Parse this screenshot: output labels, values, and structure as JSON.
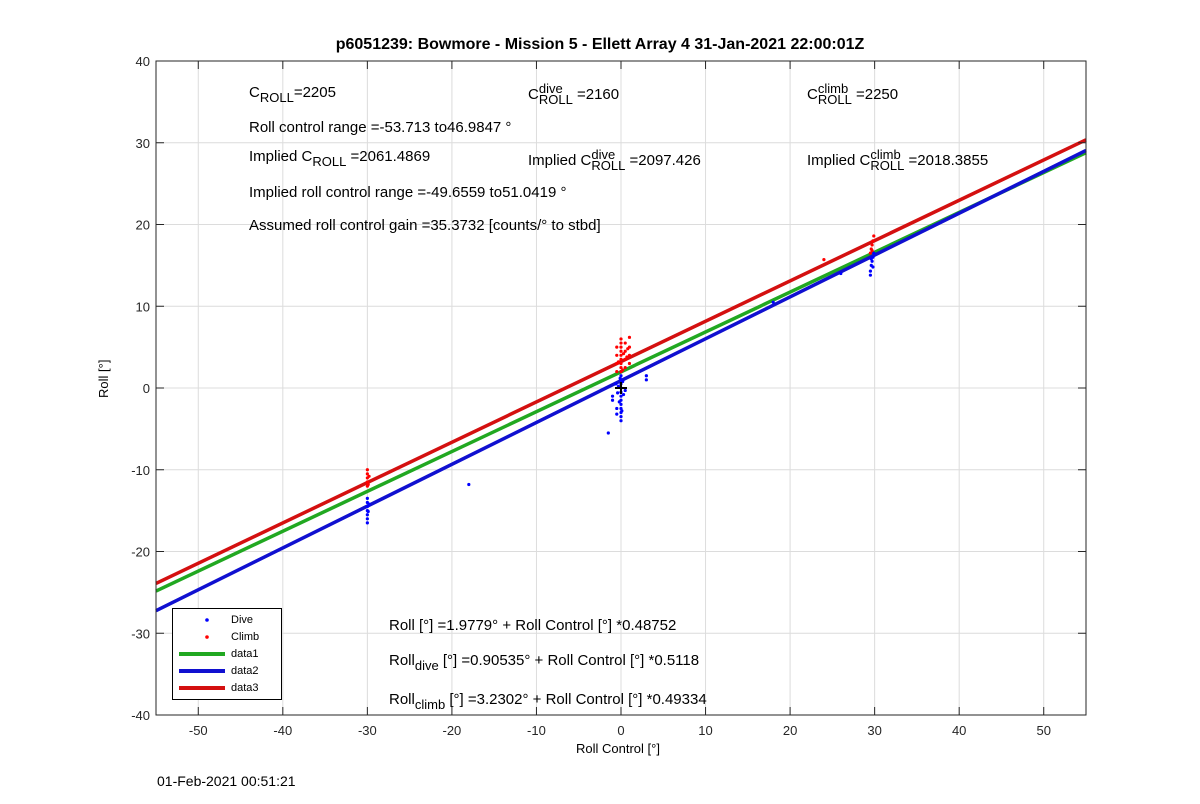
{
  "title": "p6051239: Bowmore - Mission 5 - Ellett Array 4 31-Jan-2021 22:00:01Z",
  "footer_timestamp": "01-Feb-2021 00:51:21",
  "annotations": {
    "c_roll": {
      "base": "C",
      "sub": "ROLL",
      "value": "=2205"
    },
    "c_roll_dive": {
      "base": "C",
      "sup": "dive",
      "sub": "ROLL",
      "value": " =2160"
    },
    "c_roll_climb": {
      "base": "C",
      "sup": "climb",
      "sub": "ROLL",
      "value": " =2250"
    },
    "roll_control_range": "Roll control range =-53.713 to46.9847 °",
    "implied_c_roll": {
      "prefix": "Implied C",
      "sub": "ROLL",
      "value": " =2061.4869"
    },
    "implied_c_roll_dive": {
      "prefix": "Implied C",
      "sup": "dive",
      "sub": "ROLL",
      "value": " =2097.426"
    },
    "implied_c_roll_climb": {
      "prefix": "Implied C",
      "sup": "climb",
      "sub": "ROLL",
      "value": " =2018.3855"
    },
    "implied_range": "Implied roll control range =-49.6559 to51.0419 °",
    "assumed_gain": "Assumed roll control gain =35.3732 [counts/° to stbd]",
    "fit_all": "Roll [°] =1.9779° + Roll Control [°] *0.48752",
    "fit_dive": {
      "base": "Roll",
      "sub": "dive",
      "rest": " [°] =0.90535° + Roll Control [°] *0.5118"
    },
    "fit_climb": {
      "base": "Roll",
      "sub": "climb",
      "rest": " [°] =3.2302° + Roll Control [°] *0.49334"
    }
  },
  "legend": [
    {
      "label": "Dive",
      "type": "marker",
      "color": "#0000ff"
    },
    {
      "label": "Climb",
      "type": "marker",
      "color": "#ff0000"
    },
    {
      "label": "data1",
      "type": "line",
      "color": "#21a821"
    },
    {
      "label": "data2",
      "type": "line",
      "color": "#1010d0"
    },
    {
      "label": "data3",
      "type": "line",
      "color": "#d41010"
    }
  ],
  "chart_data": {
    "type": "scatter",
    "title": "p6051239: Bowmore - Mission 5 - Ellett Array 4 31-Jan-2021 22:00:01Z",
    "xlabel": "Roll Control [°]",
    "ylabel": "Roll [°]",
    "xlim": [
      -55,
      55
    ],
    "ylim": [
      -40,
      40
    ],
    "xticks": [
      -50,
      -40,
      -30,
      -20,
      -10,
      0,
      10,
      20,
      30,
      40,
      50
    ],
    "yticks": [
      -40,
      -30,
      -20,
      -10,
      0,
      10,
      20,
      30,
      40
    ],
    "grid": true,
    "legend_position": "bottom-left",
    "marker": {
      "x": 0,
      "y": 0,
      "symbol": "+",
      "color": "#000000"
    },
    "series": [
      {
        "name": "Dive",
        "kind": "points",
        "color": "#0000ff",
        "points": [
          [
            -30,
            -13.5
          ],
          [
            -30,
            -14
          ],
          [
            -30,
            -14.5
          ],
          [
            -30,
            -15
          ],
          [
            -30,
            -15.5
          ],
          [
            -30,
            -16
          ],
          [
            -30,
            -16.5
          ],
          [
            -29.8,
            -14.2
          ],
          [
            -29.9,
            -15.1
          ],
          [
            -18,
            -11.8
          ],
          [
            -1.5,
            -5.5
          ],
          [
            -1,
            -1
          ],
          [
            -1,
            -1.5
          ],
          [
            -0.5,
            -2.5
          ],
          [
            -0.5,
            -3.2
          ],
          [
            0,
            -4
          ],
          [
            0,
            -3.5
          ],
          [
            0,
            -3
          ],
          [
            0,
            -2.5
          ],
          [
            0,
            -2
          ],
          [
            0,
            -1.5
          ],
          [
            0,
            -1
          ],
          [
            0,
            -0.5
          ],
          [
            0,
            0
          ],
          [
            0,
            0.5
          ],
          [
            0,
            1
          ],
          [
            0,
            1.5
          ],
          [
            0,
            2
          ],
          [
            -0.3,
            0.2
          ],
          [
            0.3,
            -0.8
          ],
          [
            -0.2,
            -1.7
          ],
          [
            0.2,
            0.8
          ],
          [
            -0.6,
            0.5
          ],
          [
            0.5,
            -0.3
          ],
          [
            -0.4,
            -0.6
          ],
          [
            0.1,
            -2.8
          ],
          [
            -0.1,
            1.2
          ],
          [
            3,
            1
          ],
          [
            3,
            1.5
          ],
          [
            18,
            10.5
          ],
          [
            26,
            14
          ],
          [
            29.5,
            13.8
          ],
          [
            29.5,
            14.3
          ],
          [
            29.6,
            15
          ],
          [
            29.7,
            15.5
          ],
          [
            29.8,
            16
          ],
          [
            29.9,
            16.5
          ],
          [
            29.6,
            15.8
          ],
          [
            29.8,
            14.8
          ]
        ]
      },
      {
        "name": "Climb",
        "kind": "points",
        "color": "#ff0000",
        "points": [
          [
            -30,
            -10
          ],
          [
            -30,
            -10.5
          ],
          [
            -30,
            -11
          ],
          [
            -30,
            -11.5
          ],
          [
            -30,
            -12
          ],
          [
            -29.8,
            -10.8
          ],
          [
            -29.9,
            -11.8
          ],
          [
            -0.5,
            2
          ],
          [
            -0.5,
            3
          ],
          [
            -0.5,
            4
          ],
          [
            -0.5,
            5
          ],
          [
            0,
            2
          ],
          [
            0,
            2.5
          ],
          [
            0,
            3
          ],
          [
            0,
            3.5
          ],
          [
            0,
            4
          ],
          [
            0,
            4.5
          ],
          [
            0,
            5
          ],
          [
            0,
            5.5
          ],
          [
            0,
            6
          ],
          [
            0.5,
            2.5
          ],
          [
            0.5,
            3.5
          ],
          [
            0.5,
            4.5
          ],
          [
            0.5,
            5.5
          ],
          [
            1,
            3
          ],
          [
            1,
            4
          ],
          [
            1,
            5
          ],
          [
            1,
            6.2
          ],
          [
            -0.3,
            3.2
          ],
          [
            0.3,
            4.2
          ],
          [
            0.7,
            3.8
          ],
          [
            0.2,
            2.2
          ],
          [
            0.8,
            4.8
          ],
          [
            24,
            15.7
          ],
          [
            29.5,
            16.5
          ],
          [
            29.6,
            17
          ],
          [
            29.7,
            17.5
          ],
          [
            29.8,
            18
          ],
          [
            29.9,
            18.6
          ],
          [
            29.7,
            16.8
          ]
        ]
      },
      {
        "name": "data1",
        "kind": "line",
        "color": "#21a821",
        "intercept": 1.9779,
        "slope": 0.48752
      },
      {
        "name": "data2",
        "kind": "line",
        "color": "#1010d0",
        "intercept": 0.90535,
        "slope": 0.5118
      },
      {
        "name": "data3",
        "kind": "line",
        "color": "#d41010",
        "intercept": 3.2302,
        "slope": 0.49334
      }
    ]
  }
}
